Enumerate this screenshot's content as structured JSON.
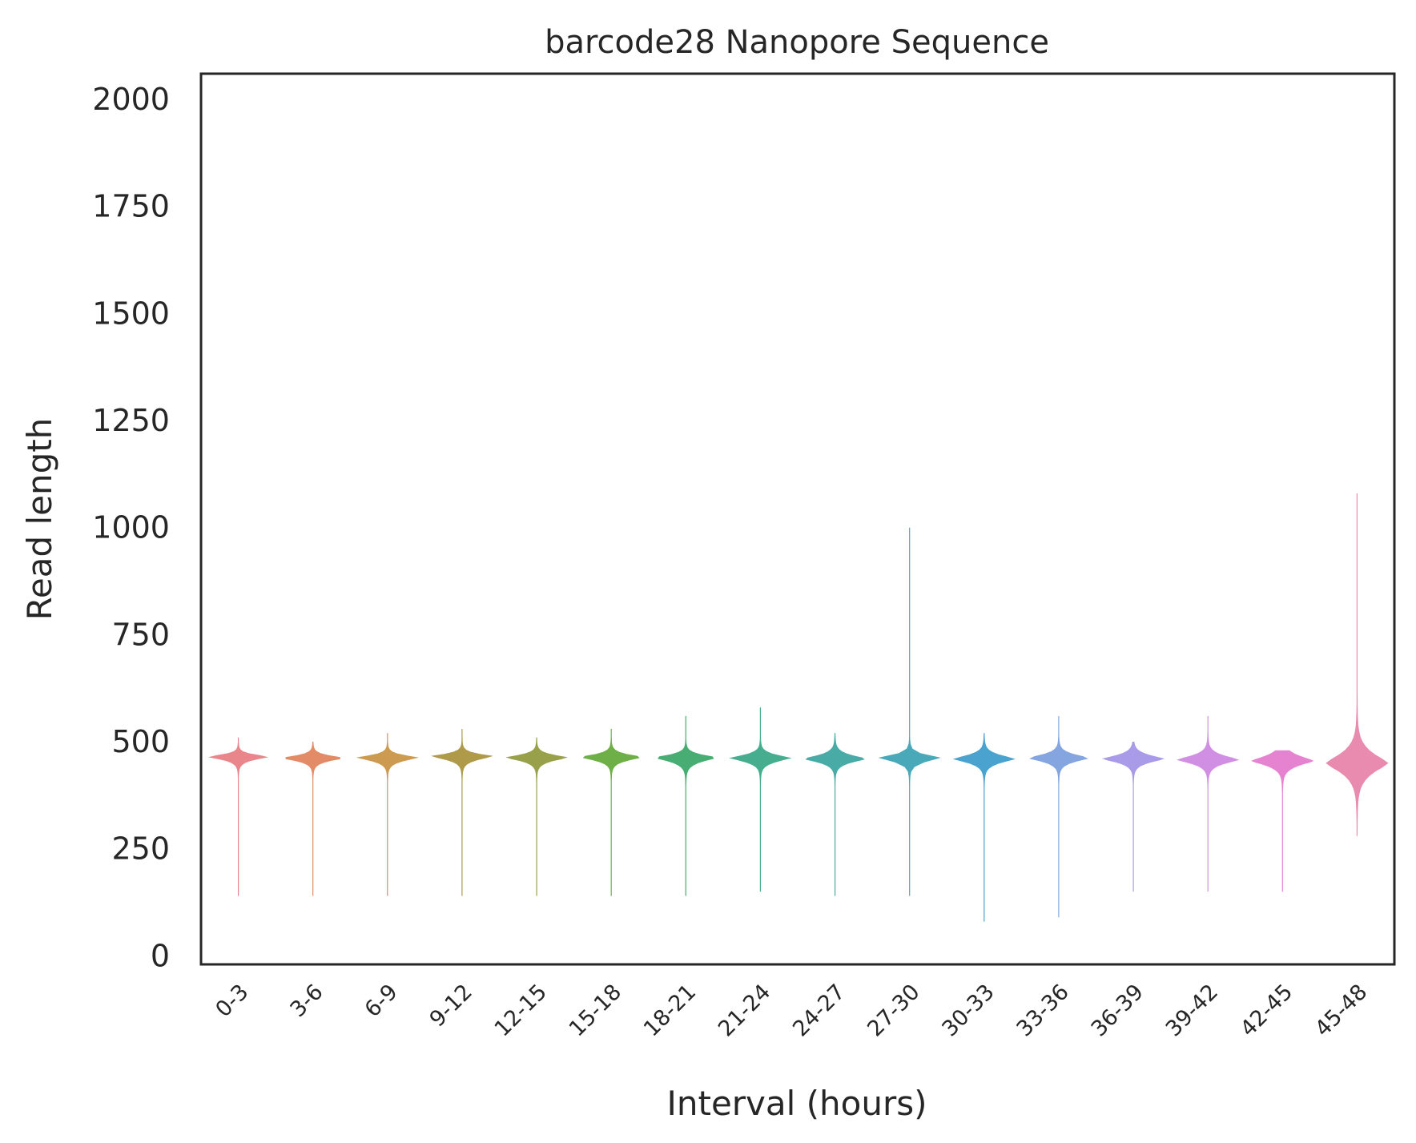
{
  "chart_data": {
    "type": "violin",
    "title": "barcode28 Nanopore Sequence",
    "xlabel": "Interval (hours)",
    "ylabel": "Read length",
    "ylim": [
      -20,
      2060
    ],
    "yticks": [
      0,
      250,
      500,
      750,
      1000,
      1250,
      1500,
      1750,
      2000
    ],
    "grid": false,
    "legend": "none",
    "categories": [
      "0-3",
      "3-6",
      "6-9",
      "9-12",
      "12-15",
      "15-18",
      "18-21",
      "21-24",
      "24-27",
      "27-30",
      "30-33",
      "33-36",
      "36-39",
      "39-42",
      "42-45",
      "45-48"
    ],
    "colors": [
      "#e8868c",
      "#e28b66",
      "#cc9a50",
      "#ae9a48",
      "#98a04a",
      "#6faf48",
      "#47ad72",
      "#47ad8f",
      "#48aba5",
      "#4aa9b8",
      "#4aa3cf",
      "#84a5e0",
      "#aa9be9",
      "#d08fe3",
      "#e583d1",
      "#e98aaf"
    ],
    "series": [
      {
        "median": 465,
        "q1": 455,
        "q3": 472,
        "min": 140,
        "max": 510
      },
      {
        "median": 462,
        "q1": 452,
        "q3": 470,
        "min": 140,
        "max": 500
      },
      {
        "median": 463,
        "q1": 452,
        "q3": 471,
        "min": 140,
        "max": 520
      },
      {
        "median": 466,
        "q1": 455,
        "q3": 474,
        "min": 140,
        "max": 530
      },
      {
        "median": 463,
        "q1": 452,
        "q3": 472,
        "min": 140,
        "max": 510
      },
      {
        "median": 464,
        "q1": 453,
        "q3": 473,
        "min": 140,
        "max": 530
      },
      {
        "median": 463,
        "q1": 450,
        "q3": 472,
        "min": 140,
        "max": 560
      },
      {
        "median": 462,
        "q1": 450,
        "q3": 472,
        "min": 150,
        "max": 580
      },
      {
        "median": 460,
        "q1": 448,
        "q3": 472,
        "min": 140,
        "max": 520
      },
      {
        "median": 462,
        "q1": 450,
        "q3": 472,
        "min": 140,
        "max": 1000
      },
      {
        "median": 460,
        "q1": 447,
        "q3": 472,
        "min": 80,
        "max": 520
      },
      {
        "median": 462,
        "q1": 450,
        "q3": 473,
        "min": 90,
        "max": 560
      },
      {
        "median": 460,
        "q1": 448,
        "q3": 472,
        "min": 150,
        "max": 500
      },
      {
        "median": 458,
        "q1": 445,
        "q3": 471,
        "min": 150,
        "max": 560
      },
      {
        "median": 455,
        "q1": 440,
        "q3": 472,
        "min": 150,
        "max": 480
      },
      {
        "median": 450,
        "q1": 420,
        "q3": 480,
        "min": 280,
        "max": 1080
      }
    ]
  }
}
